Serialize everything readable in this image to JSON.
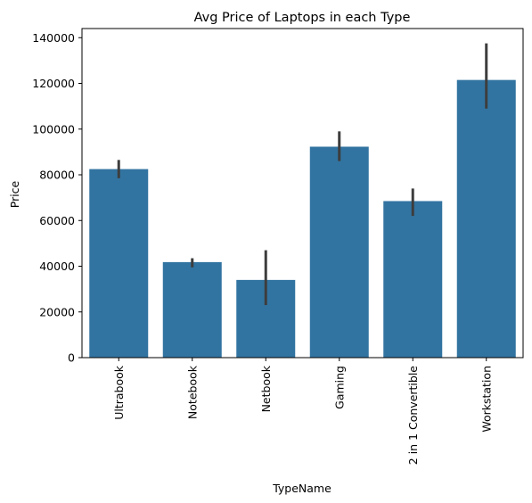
{
  "chart_data": {
    "type": "bar",
    "title": "Avg Price of Laptops in each Type",
    "xlabel": "TypeName",
    "ylabel": "Price",
    "categories": [
      "Ultrabook",
      "Notebook",
      "Netbook",
      "Gaming",
      "2 in 1 Convertible",
      "Workstation"
    ],
    "values": [
      82500,
      41800,
      34000,
      92300,
      68500,
      121500
    ],
    "error_low": [
      78500,
      39500,
      23000,
      86000,
      62000,
      109000
    ],
    "error_high": [
      86500,
      43500,
      47000,
      99000,
      74000,
      137500
    ],
    "ylim": [
      0,
      144000
    ],
    "yticks": [
      0,
      20000,
      40000,
      60000,
      80000,
      100000,
      120000,
      140000
    ],
    "ytick_labels": [
      "0",
      "20000",
      "40000",
      "60000",
      "80000",
      "100000",
      "120000",
      "140000"
    ],
    "grid": false,
    "bar_color": "#3274a1",
    "error_color": "#3d3d3d"
  }
}
